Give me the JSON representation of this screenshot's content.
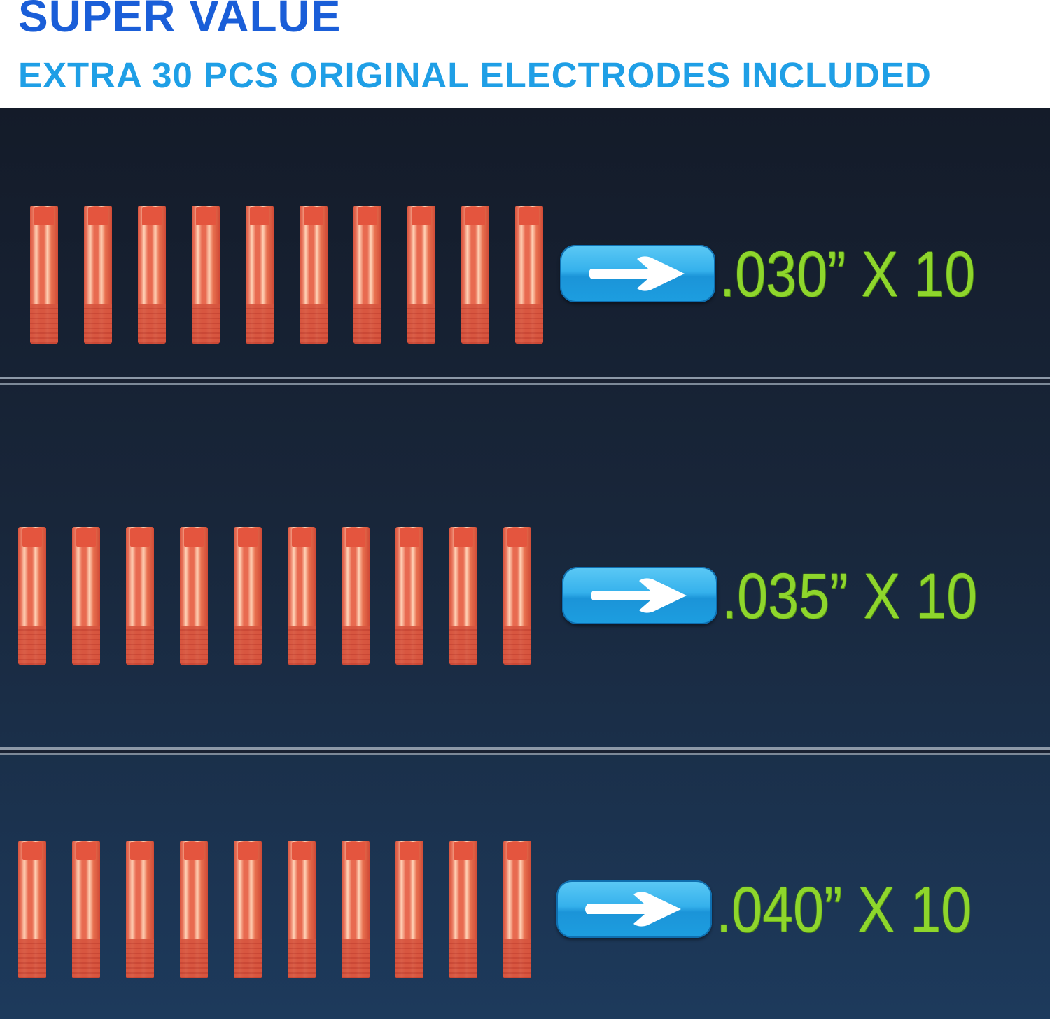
{
  "header": {
    "title": "SUPER VALUE",
    "subtitle": "EXTRA 30 PCS ORIGINAL ELECTRODES INCLUDED"
  },
  "rows": [
    {
      "spec": ".030” X 10",
      "count": 10,
      "icon": "arrow-right-icon"
    },
    {
      "spec": ".035” X 10",
      "count": 10,
      "icon": "arrow-right-icon"
    },
    {
      "spec": ".040” X 10",
      "count": 10,
      "icon": "arrow-right-icon"
    }
  ],
  "colors": {
    "title": "#1a5ed8",
    "subtitle": "#1f9fe6",
    "spec_text": "#8ed62c",
    "arrow_button": "#35b1ec",
    "contact_tip": "#e86a50"
  }
}
